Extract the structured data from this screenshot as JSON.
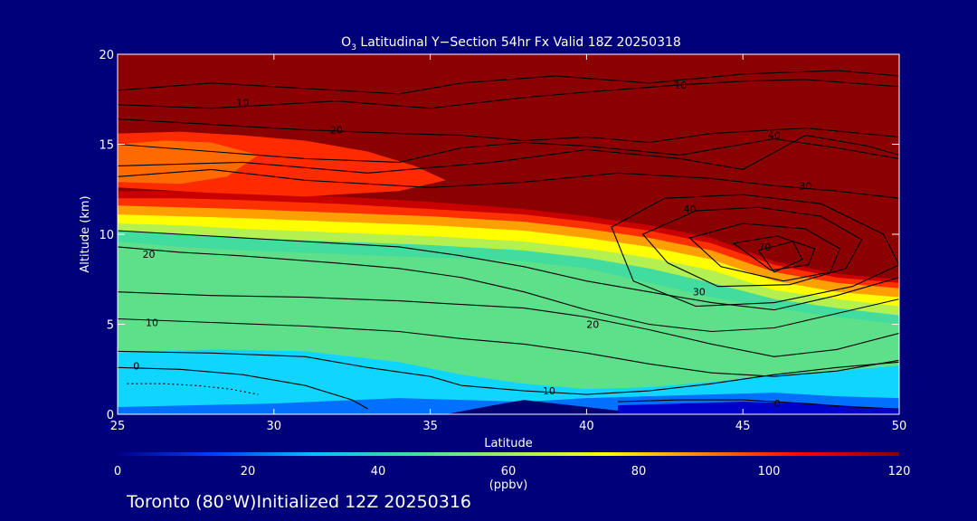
{
  "chart_data": {
    "type": "heatmap",
    "title": {
      "prefix": "O",
      "subscript": "3",
      "rest": " Latitudinal Y−Section 54hr  Fx Valid 18Z 20250318"
    },
    "xlabel": "Latitude",
    "ylabel": "Altitude (km)",
    "xlim": [
      25,
      50
    ],
    "ylim": [
      0,
      20
    ],
    "xticks": [
      25,
      30,
      35,
      40,
      45,
      50
    ],
    "yticks": [
      0,
      5,
      10,
      15,
      20
    ],
    "colorbar": {
      "range": [
        0,
        120
      ],
      "ticks": [
        0,
        20,
        40,
        60,
        80,
        100,
        120
      ],
      "unit": "(ppbv)",
      "colors": [
        "#00008b",
        "#0040ff",
        "#00c0ff",
        "#40e0a0",
        "#a0f060",
        "#ffff00",
        "#ff8000",
        "#ff0000",
        "#8b0000"
      ]
    },
    "bands": [
      {
        "name": "b55",
        "color": "#42dc9e",
        "x": [
          25,
          27,
          29,
          32,
          35,
          38,
          40,
          42,
          44,
          46,
          48,
          50
        ],
        "y": [
          9.6,
          9.3,
          9.1,
          8.9,
          8.7,
          8.5,
          8.1,
          7.3,
          6.5,
          5.9,
          5.4,
          5.0
        ]
      },
      {
        "name": "b70",
        "color": "#b4f050",
        "x": [
          25,
          27,
          29,
          32,
          35,
          38,
          40,
          42,
          44,
          46,
          48,
          50
        ],
        "y": [
          10.2,
          10.0,
          9.8,
          9.6,
          9.4,
          9.1,
          8.7,
          8.1,
          7.3,
          6.4,
          5.9,
          5.5
        ]
      },
      {
        "name": "b80",
        "color": "#ffff00",
        "x": [
          25,
          27,
          29,
          32,
          35,
          38,
          40,
          42,
          44,
          46,
          48,
          50
        ],
        "y": [
          10.6,
          10.5,
          10.3,
          10.1,
          9.9,
          9.6,
          9.2,
          8.7,
          8.0,
          6.9,
          6.4,
          6.0
        ]
      },
      {
        "name": "b90",
        "color": "#ffa000",
        "x": [
          25,
          27,
          29,
          32,
          35,
          38,
          40,
          42,
          44,
          46,
          48,
          50
        ],
        "y": [
          11.1,
          11.0,
          10.9,
          10.7,
          10.5,
          10.2,
          9.8,
          9.3,
          8.6,
          7.4,
          6.8,
          6.5
        ]
      },
      {
        "name": "b100",
        "color": "#ff3000",
        "x": [
          25,
          27,
          29,
          32,
          35,
          38,
          40,
          42,
          44,
          46,
          48,
          50
        ],
        "y": [
          11.6,
          11.5,
          11.4,
          11.2,
          11.0,
          10.7,
          10.3,
          9.8,
          9.1,
          7.9,
          7.3,
          7.0
        ]
      },
      {
        "name": "b110",
        "color": "#c80000",
        "x": [
          25,
          27,
          29,
          32,
          35,
          38,
          40,
          42,
          44,
          46,
          48,
          50
        ],
        "y": [
          12.0,
          12.0,
          11.9,
          11.7,
          11.4,
          11.1,
          10.7,
          10.2,
          9.5,
          8.3,
          7.6,
          7.3
        ]
      },
      {
        "name": "b120",
        "color": "#8b0000",
        "x": [
          25,
          27,
          29,
          32,
          35,
          38,
          40,
          42,
          44,
          46,
          48,
          50
        ],
        "y": [
          12.4,
          12.4,
          12.3,
          12.1,
          11.8,
          11.4,
          11.0,
          10.5,
          9.8,
          8.5,
          7.8,
          7.5
        ]
      }
    ],
    "blobs": [
      {
        "name": "red-wedge",
        "color": "#ff2a00",
        "x": [
          25,
          27,
          29,
          31,
          33,
          34.5,
          35.5,
          34,
          31,
          28,
          25
        ],
        "y": [
          15.6,
          15.7,
          15.5,
          15.2,
          14.6,
          13.8,
          13.0,
          12.4,
          12.1,
          12.3,
          12.6
        ]
      },
      {
        "name": "orange-wedge",
        "color": "#ff6a00",
        "x": [
          25,
          26.5,
          28,
          29.5,
          28.5,
          27,
          25
        ],
        "y": [
          15.0,
          15.2,
          15.1,
          14.4,
          13.2,
          12.8,
          12.9
        ]
      },
      {
        "name": "cyan-surface",
        "color": "#10d6ff",
        "x": [
          25,
          28,
          31,
          34,
          36,
          38,
          40,
          42,
          44,
          46,
          48,
          50,
          50,
          48,
          46,
          44,
          42,
          40,
          38,
          36,
          34,
          31,
          28,
          25
        ],
        "y": [
          3.4,
          3.6,
          3.5,
          2.9,
          2.2,
          1.7,
          1.4,
          1.5,
          1.8,
          2.2,
          2.4,
          2.7,
          0,
          0,
          0,
          0,
          0,
          0,
          0,
          0,
          0,
          0,
          0,
          0
        ]
      },
      {
        "name": "blue-surface",
        "color": "#0070ff",
        "x": [
          25,
          30,
          34,
          36,
          38,
          40,
          42,
          44,
          46,
          48,
          50,
          50,
          48,
          46,
          44,
          42,
          40,
          38,
          36,
          34,
          30,
          25
        ],
        "y": [
          0.4,
          0.6,
          0.9,
          0.8,
          0.7,
          0.9,
          1.0,
          1.1,
          1.2,
          1.0,
          0.9,
          0,
          0,
          0,
          0,
          0,
          0,
          0,
          0,
          0,
          0,
          0
        ]
      },
      {
        "name": "deep-blue-pool",
        "color": "#0000c8",
        "x": [
          41,
          43,
          45,
          47,
          49,
          50,
          50,
          41
        ],
        "y": [
          0.5,
          0.6,
          0.7,
          0.6,
          0.4,
          0.3,
          0,
          0
        ]
      },
      {
        "name": "terrain",
        "color": "#000070",
        "x": [
          35.5,
          37,
          38,
          39,
          40,
          41,
          41,
          35.5
        ],
        "y": [
          0,
          0.5,
          0.8,
          0.6,
          0.4,
          0.2,
          0,
          0
        ]
      }
    ],
    "contours": [
      {
        "name": "contour-10-top",
        "label": "10",
        "label_x": 29,
        "label_y": 17.3,
        "x": [
          25,
          28,
          32,
          35,
          38,
          40,
          43,
          45,
          47,
          50
        ],
        "y": [
          17.2,
          17.0,
          17.4,
          17.0,
          17.6,
          17.9,
          18.3,
          18.5,
          18.6,
          18.2
        ]
      },
      {
        "name": "contour-10-upper",
        "label": "10",
        "label_x": 43,
        "label_y": 18.3,
        "x": [
          25,
          28,
          31,
          34,
          36,
          39,
          42,
          45,
          48,
          50
        ],
        "y": [
          18.0,
          18.4,
          18.1,
          17.8,
          18.4,
          18.8,
          18.4,
          18.9,
          19.1,
          18.8
        ]
      },
      {
        "name": "contour-20-upper",
        "label": "20",
        "label_x": 32,
        "label_y": 15.8,
        "x": [
          25,
          28,
          31,
          34,
          36,
          38,
          40,
          42,
          44,
          47,
          50
        ],
        "y": [
          16.4,
          16.1,
          15.8,
          15.6,
          15.5,
          15.2,
          15.4,
          15.1,
          15.6,
          15.9,
          15.4
        ]
      },
      {
        "name": "contour-30-upper",
        "label": "",
        "x": [
          25,
          28,
          31,
          34,
          36,
          38,
          40,
          43,
          46,
          48,
          50
        ],
        "y": [
          15.0,
          14.6,
          14.2,
          14.0,
          14.8,
          15.1,
          14.9,
          14.4,
          15.3,
          14.8,
          14.2
        ]
      },
      {
        "name": "contour-30-mid",
        "label": "30",
        "label_x": 47,
        "label_y": 12.7,
        "x": [
          25,
          28,
          31,
          35,
          38,
          41,
          44,
          46,
          48,
          50
        ],
        "y": [
          13.2,
          13.6,
          13.0,
          12.6,
          12.9,
          13.4,
          13.1,
          12.7,
          12.4,
          12.0
        ]
      },
      {
        "name": "contour-40",
        "label": "40",
        "label_x": 46,
        "label_y": 15.5,
        "x": [
          25,
          29,
          33,
          37,
          40,
          43,
          45,
          47,
          49,
          50
        ],
        "y": [
          13.8,
          14.0,
          13.4,
          14.0,
          14.7,
          14.2,
          13.6,
          15.5,
          14.9,
          14.4
        ]
      },
      {
        "name": "contour-ring-outer",
        "label": "",
        "closed": true,
        "x": [
          40.8,
          42.5,
          45,
          47.5,
          49.5,
          50,
          48.5,
          46,
          43.5,
          41.5
        ],
        "y": [
          10.4,
          12.0,
          12.2,
          11.7,
          10.0,
          8.3,
          7.1,
          6.2,
          6.0,
          7.4
        ]
      },
      {
        "name": "contour-ring-40",
        "label": "40",
        "label_x": 43.3,
        "label_y": 11.4,
        "closed": true,
        "x": [
          41.8,
          43.5,
          45.5,
          47.5,
          48.8,
          48.3,
          46.5,
          44.2,
          42.6
        ],
        "y": [
          10.0,
          11.3,
          11.5,
          11.0,
          9.7,
          8.1,
          7.2,
          7.1,
          8.4
        ]
      },
      {
        "name": "contour-ring-50",
        "label": "",
        "closed": true,
        "x": [
          43.3,
          45,
          47,
          48.1,
          47.8,
          46.3,
          44.3
        ],
        "y": [
          9.8,
          10.6,
          10.3,
          9.2,
          7.9,
          7.4,
          8.2
        ]
      },
      {
        "name": "contour-ring-60",
        "label": "",
        "closed": true,
        "x": [
          44.7,
          46.1,
          47.3,
          47.1,
          45.9
        ],
        "y": [
          9.5,
          9.9,
          9.2,
          8.3,
          8.0
        ]
      },
      {
        "name": "contour-ring-70",
        "label": "70",
        "label_x": 45.7,
        "label_y": 9.3,
        "closed": true,
        "x": [
          45.5,
          46.6,
          46.9,
          46.0
        ],
        "y": [
          9.1,
          9.6,
          8.6,
          7.9
        ]
      },
      {
        "name": "contour-20-trop",
        "label": "20",
        "label_x": 26,
        "label_y": 8.9,
        "x": [
          25,
          27,
          29,
          32,
          34,
          36,
          38,
          40,
          42,
          44,
          46,
          48,
          50
        ],
        "y": [
          9.3,
          9.0,
          8.8,
          8.4,
          8.1,
          7.6,
          6.8,
          5.8,
          5.0,
          4.6,
          4.8,
          5.6,
          6.4
        ]
      },
      {
        "name": "contour-30-trop",
        "label": "30",
        "label_x": 43.6,
        "label_y": 6.8,
        "x": [
          25,
          28,
          31,
          34,
          36,
          38,
          40,
          42,
          44,
          46,
          48,
          50
        ],
        "y": [
          10.2,
          9.9,
          9.6,
          9.3,
          8.8,
          8.2,
          7.4,
          6.8,
          6.2,
          5.8,
          6.6,
          7.6
        ]
      },
      {
        "name": "contour-20-mid",
        "label": "20",
        "label_x": 40.2,
        "label_y": 5.0,
        "x": [
          25,
          28,
          31,
          34,
          36,
          38,
          40,
          42,
          44,
          46,
          48,
          50
        ],
        "y": [
          6.8,
          6.6,
          6.5,
          6.3,
          6.1,
          5.9,
          5.4,
          4.7,
          3.9,
          3.2,
          3.6,
          4.5
        ]
      },
      {
        "name": "contour-10-mid",
        "label": "10",
        "label_x": 26.1,
        "label_y": 5.1,
        "x": [
          25,
          28,
          31,
          34,
          36,
          38,
          40,
          42,
          44,
          46,
          48,
          50
        ],
        "y": [
          5.3,
          5.1,
          4.9,
          4.6,
          4.2,
          3.9,
          3.4,
          2.8,
          2.3,
          2.1,
          2.4,
          3.0
        ]
      },
      {
        "name": "contour-10-low",
        "label": "10",
        "label_x": 38.8,
        "label_y": 1.3,
        "x": [
          25,
          28,
          31,
          33,
          35,
          36,
          38,
          40,
          42,
          44,
          46,
          48,
          50
        ],
        "y": [
          3.5,
          3.4,
          3.2,
          2.6,
          2.1,
          1.6,
          1.3,
          1.1,
          1.3,
          1.7,
          2.2,
          2.6,
          2.9
        ]
      },
      {
        "name": "contour-0",
        "label": "0",
        "label_x": 25.6,
        "label_y": 2.7,
        "x": [
          25,
          27,
          29,
          31,
          32.5,
          33
        ],
        "y": [
          2.6,
          2.5,
          2.2,
          1.6,
          0.8,
          0.3
        ]
      },
      {
        "name": "contour-0-right",
        "label": "0",
        "label_x": 46.1,
        "label_y": 0.6,
        "x": [
          41,
          43,
          45,
          47,
          48.5,
          50
        ],
        "y": [
          0.7,
          0.8,
          0.8,
          0.6,
          0.4,
          0.3
        ]
      }
    ],
    "dotted": {
      "x": [
        25.3,
        26.5,
        27.5,
        28.6,
        29.5
      ],
      "y": [
        1.7,
        1.7,
        1.6,
        1.4,
        1.1
      ]
    }
  },
  "footer": {
    "location": "Toronto (80°W)",
    "init_text": "Initialized 12Z 20250316"
  }
}
